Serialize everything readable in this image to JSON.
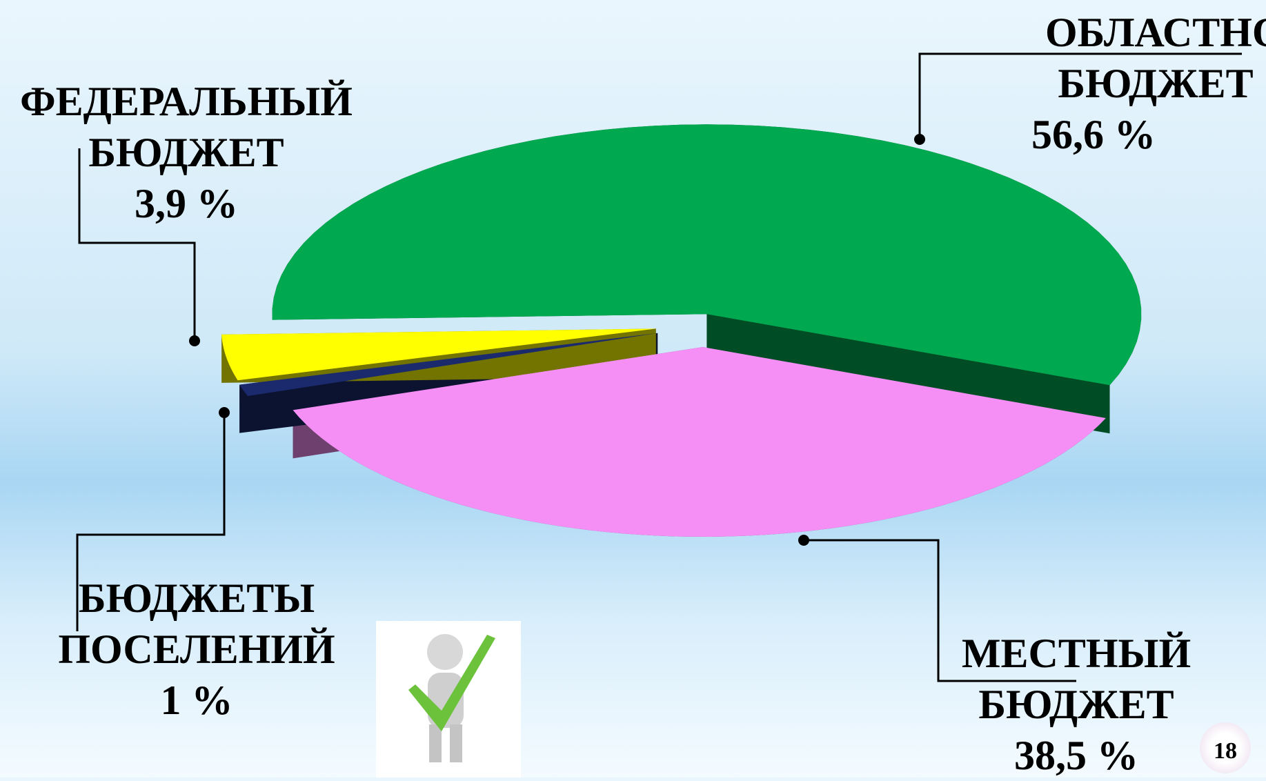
{
  "chart_data": {
    "type": "pie",
    "categories": [
      "ОБЛАСТНОЙ БЮДЖЕТ",
      "МЕСТНЫЙ БЮДЖЕТ",
      "ФЕДЕРАЛЬНЫЙ БЮДЖЕТ",
      "БЮДЖЕТЫ ПОСЕЛЕНИЙ"
    ],
    "values": [
      56.6,
      38.5,
      3.9,
      1
    ],
    "value_labels": [
      "56,6 %",
      "38,5 %",
      "3,9 %",
      "1 %"
    ],
    "colors": [
      "#00a84f",
      "#f58ef5",
      "#ffff00",
      "#1a2a6c"
    ]
  },
  "slide_number": "18"
}
